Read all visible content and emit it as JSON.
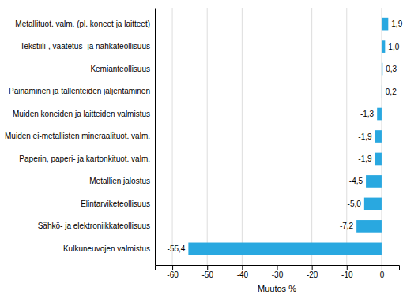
{
  "chart_data": {
    "type": "bar",
    "orientation": "horizontal",
    "categories": [
      "Kulkuneuvojen valmistus",
      "Sähkö- ja elektroniikkateollisuus",
      "Elintarviketeollisuus",
      "Metallien jalostus",
      "Paperin, paperi- ja kartonkituot. valm.",
      "Muiden ei-metallisten mineraalituot. valm.",
      "Muiden koneiden ja laitteiden valmistus",
      "Painaminen ja tallenteiden jäljentäminen",
      "Kemianteollisuus",
      "Tekstiili-, vaatetus- ja nahkateollisuus",
      "Metallituot. valm. (pl. koneet ja laitteet)"
    ],
    "values": [
      -55.4,
      -7.2,
      -5.0,
      -4.5,
      -1.9,
      -1.9,
      -1.3,
      0.2,
      0.3,
      1.0,
      1.9
    ],
    "value_labels": [
      "-55,4",
      "-7,2",
      "-5,0",
      "-4,5",
      "-1,9",
      "-1,9",
      "-1,3",
      "0,2",
      "0,3",
      "1,0",
      "1,9"
    ],
    "data_labels": true,
    "color": "#29a8e0",
    "xlabel": "Muutos %",
    "xlim": [
      -65,
      5
    ],
    "xticks": [
      -60,
      -50,
      -40,
      -30,
      -20,
      -10,
      0
    ],
    "grid": true
  }
}
